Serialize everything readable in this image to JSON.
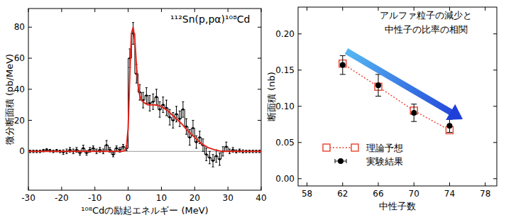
{
  "chart_data": [
    {
      "type": "line",
      "annotation": "¹¹²Sn(p,pα)¹⁰⁸Cd",
      "x_label": "¹⁰⁸Cdの励起エネルギー (MeV)",
      "y_label": "微分断面積 (pb/MeV)",
      "xlim": [
        -30,
        40
      ],
      "xticks": [
        -30,
        -20,
        -10,
        0,
        10,
        20,
        30,
        40
      ],
      "ylim": [
        -25,
        92
      ],
      "yticks": [
        0,
        20,
        40,
        60,
        80
      ],
      "series": [
        {
          "type": "step",
          "color": "#000000",
          "marker": "circle",
          "x": [
            -29.5,
            -28.5,
            -27.5,
            -26.5,
            -25.5,
            -24.5,
            -23.5,
            -22.5,
            -21.5,
            -20.5,
            -19.5,
            -18.5,
            -17.5,
            -16.5,
            -15.5,
            -14.5,
            -13.5,
            -12.5,
            -11.5,
            -10.5,
            -9.5,
            -8.5,
            -7.5,
            -6.5,
            -5.5,
            -4.5,
            -3.5,
            -2.5,
            -1.5,
            -0.5,
            0.5,
            1.5,
            2.5,
            3.5,
            4.5,
            5.5,
            6.5,
            7.5,
            8.5,
            9.5,
            10.5,
            11.5,
            12.5,
            13.5,
            14.5,
            15.5,
            16.5,
            17.5,
            18.5,
            19.5,
            20.5,
            21.5,
            22.5,
            23.5,
            24.5,
            25.5,
            26.5,
            27.5,
            28.5,
            29.5,
            30.5,
            31.5,
            32.5,
            33.5,
            34.5,
            35.5,
            36.5,
            37.5,
            38.5,
            39.5
          ],
          "values": [
            0,
            0,
            0,
            0,
            0.5,
            1,
            0.5,
            0,
            0.5,
            0,
            -0.5,
            0,
            1,
            0,
            1,
            -1,
            2,
            -1,
            1,
            2,
            0,
            1,
            0,
            4,
            1,
            -2,
            2,
            1,
            3,
            2,
            60,
            76,
            50,
            38,
            33,
            36,
            31,
            32,
            35,
            27,
            30,
            28,
            22,
            20,
            24,
            21,
            27,
            16,
            9,
            15,
            6,
            9,
            4,
            -2,
            -4,
            -6,
            -3,
            -5,
            0,
            3,
            0,
            1,
            0,
            0.5,
            0,
            0,
            0,
            0,
            0,
            0
          ],
          "errors": [
            0.8,
            0.8,
            0.8,
            0.8,
            0.8,
            0.8,
            0.8,
            0.8,
            0.8,
            0.8,
            1.5,
            1.5,
            1.5,
            1.5,
            1.5,
            1.5,
            2,
            1.5,
            1.5,
            1.5,
            1.5,
            1.5,
            1.5,
            3,
            1.5,
            1.5,
            1.5,
            1.5,
            1.5,
            1.5,
            6,
            7,
            6,
            5,
            5,
            5,
            5,
            5,
            5,
            5,
            5,
            5,
            5,
            5,
            5,
            5,
            5,
            5,
            5,
            5,
            4,
            4,
            4,
            4,
            4,
            4,
            4,
            4,
            3,
            3,
            1.5,
            1.5,
            1,
            1,
            1,
            0.8,
            0.8,
            0.8,
            0.8,
            0.8
          ]
        },
        {
          "type": "line",
          "color": "#e3241b",
          "x": [
            -30,
            -2,
            -1,
            -0.5,
            0,
            0.5,
            1,
            1.5,
            2,
            2.5,
            3,
            3.5,
            4,
            5,
            6,
            7,
            8,
            10,
            12,
            14,
            16,
            18,
            20,
            22,
            24,
            26,
            28,
            40
          ],
          "values": [
            0,
            0,
            0.5,
            3,
            15,
            50,
            76,
            80,
            72,
            55,
            42,
            36,
            33,
            31,
            30,
            30,
            30,
            29,
            26,
            22,
            18,
            13,
            9,
            5,
            2.5,
            1,
            0,
            0
          ]
        }
      ]
    },
    {
      "type": "scatter",
      "annotation": [
        "アルファ粒子の減少と",
        "中性子の比率の相関"
      ],
      "x_label": "中性子数",
      "y_label": "断面積 (nb)",
      "xlim": [
        57,
        79.3
      ],
      "xticks": [
        58,
        62,
        66,
        70,
        74,
        78
      ],
      "ylim": [
        -0.01,
        0.237
      ],
      "yticks": [
        {
          "value": 0,
          "label": "0.00"
        },
        {
          "value": 0.05,
          "label": "0.05"
        },
        {
          "value": 0.1,
          "label": "0.10"
        },
        {
          "value": 0.15,
          "label": "0.15"
        },
        {
          "value": 0.2,
          "label": "0.20"
        }
      ],
      "legend": "lower right",
      "series": [
        {
          "name": "理論予想",
          "type": "line",
          "marker": "square",
          "line_style": "dotted",
          "color": "#e8412c",
          "x": [
            62,
            66,
            70,
            74
          ],
          "values": [
            0.159,
            0.127,
            0.094,
            0.067
          ]
        },
        {
          "name": "実験結果",
          "type": "scatter",
          "marker": "circle",
          "color": "#000000",
          "x": [
            62,
            66,
            70,
            74
          ],
          "values": [
            0.157,
            0.129,
            0.091,
            0.073
          ],
          "errors": [
            0.013,
            0.015,
            0.012,
            0.009
          ]
        }
      ]
    }
  ]
}
